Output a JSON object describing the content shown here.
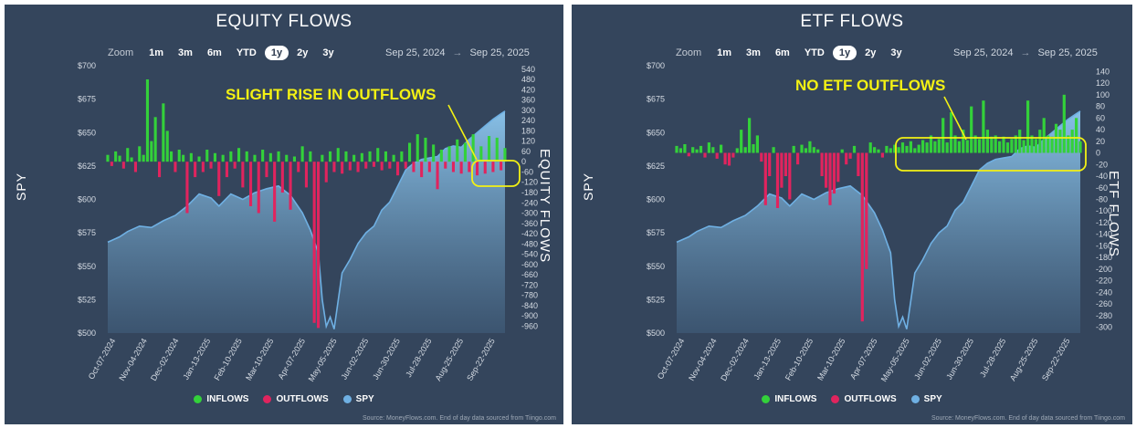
{
  "panels": [
    {
      "title": "EQUITY FLOWS",
      "zoom": {
        "label": "Zoom",
        "buttons": [
          "1m",
          "3m",
          "6m",
          "YTD",
          "1y",
          "2y",
          "3y"
        ],
        "selected": "1y"
      },
      "range": {
        "from": "Sep 25, 2024",
        "sep": "→",
        "to": "Sep 25, 2025"
      },
      "annotation": "SLIGHT RISE IN OUTFLOWS",
      "legend": {
        "inflows": "INFLOWS",
        "outflows": "OUTFLOWS",
        "spy": "SPY"
      },
      "source": "Source: MoneyFlows.com. End of day data sourced from Tiingo.com"
    },
    {
      "title": "ETF FLOWS",
      "zoom": {
        "label": "Zoom",
        "buttons": [
          "1m",
          "3m",
          "6m",
          "YTD",
          "1y",
          "2y",
          "3y"
        ],
        "selected": "1y"
      },
      "range": {
        "from": "Sep 25, 2024",
        "sep": "→",
        "to": "Sep 25, 2025"
      },
      "annotation": "NO ETF OUTFLOWS",
      "legend": {
        "inflows": "INFLOWS",
        "outflows": "OUTFLOWS",
        "spy": "SPY"
      },
      "source": "Source: MoneyFlows.com. End of day data sourced from Tiingo.com"
    }
  ],
  "colors": {
    "panel_bg": "#34455c",
    "inflows": "#33d13a",
    "outflows": "#e0245e",
    "spy": "#6fb0e3",
    "annotation": "#f3f114"
  },
  "chart_data": [
    {
      "type": "bar",
      "title": "EQUITY FLOWS",
      "ylabel": "SPY",
      "ylabel_right": "EQUITY FLOWS",
      "left_axis": {
        "ylim": [
          500,
          700
        ],
        "ticks": [
          "$700",
          "$675",
          "$650",
          "$625",
          "$600",
          "$575",
          "$550",
          "$525",
          "$500"
        ]
      },
      "right_axis": {
        "ylim": [
          -1000,
          560
        ],
        "ticks": [
          "540",
          "480",
          "420",
          "360",
          "300",
          "240",
          "180",
          "120",
          "60",
          "0",
          "-60",
          "-120",
          "-180",
          "-240",
          "-300",
          "-360",
          "-420",
          "-480",
          "-540",
          "-600",
          "-660",
          "-720",
          "-780",
          "-840",
          "-900",
          "-960"
        ]
      },
      "x_tick_labels": [
        "Oct-07-2024",
        "Nov-04-2024",
        "Dec-02-2024",
        "Jan-13-2025",
        "Feb-10-2025",
        "Mar-10-2025",
        "Apr-07-2025",
        "May-05-2025",
        "Jun-02-2025",
        "Jun-30-2025",
        "Jul-28-2025",
        "Aug-25-2025",
        "Sep-22-2025"
      ],
      "spy": [
        [
          0,
          568
        ],
        [
          0.03,
          572
        ],
        [
          0.05,
          576
        ],
        [
          0.08,
          580
        ],
        [
          0.11,
          579
        ],
        [
          0.14,
          584
        ],
        [
          0.17,
          588
        ],
        [
          0.2,
          595
        ],
        [
          0.23,
          604
        ],
        [
          0.26,
          601
        ],
        [
          0.28,
          595
        ],
        [
          0.31,
          604
        ],
        [
          0.34,
          600
        ],
        [
          0.37,
          605
        ],
        [
          0.4,
          608
        ],
        [
          0.43,
          610
        ],
        [
          0.46,
          603
        ],
        [
          0.49,
          590
        ],
        [
          0.51,
          577
        ],
        [
          0.53,
          560
        ],
        [
          0.54,
          525
        ],
        [
          0.55,
          505
        ],
        [
          0.56,
          512
        ],
        [
          0.57,
          503
        ],
        [
          0.59,
          545
        ],
        [
          0.61,
          555
        ],
        [
          0.63,
          567
        ],
        [
          0.65,
          575
        ],
        [
          0.67,
          580
        ],
        [
          0.69,
          592
        ],
        [
          0.71,
          598
        ],
        [
          0.73,
          610
        ],
        [
          0.75,
          622
        ],
        [
          0.77,
          627
        ],
        [
          0.79,
          630
        ],
        [
          0.81,
          631
        ],
        [
          0.83,
          632
        ],
        [
          0.85,
          638
        ],
        [
          0.87,
          640
        ],
        [
          0.89,
          639
        ],
        [
          0.91,
          645
        ],
        [
          0.93,
          650
        ],
        [
          0.95,
          655
        ],
        [
          0.97,
          660
        ],
        [
          0.99,
          664
        ],
        [
          1.0,
          666
        ]
      ],
      "flows": [
        [
          0,
          40
        ],
        [
          0.01,
          -25
        ],
        [
          0.02,
          60
        ],
        [
          0.03,
          35
        ],
        [
          0.04,
          -40
        ],
        [
          0.05,
          80
        ],
        [
          0.06,
          25
        ],
        [
          0.07,
          -60
        ],
        [
          0.08,
          90
        ],
        [
          0.09,
          40
        ],
        [
          0.1,
          480
        ],
        [
          0.11,
          120
        ],
        [
          0.12,
          260
        ],
        [
          0.13,
          -90
        ],
        [
          0.14,
          340
        ],
        [
          0.15,
          180
        ],
        [
          0.16,
          60
        ],
        [
          0.17,
          -60
        ],
        [
          0.18,
          70
        ],
        [
          0.19,
          40
        ],
        [
          0.2,
          -300
        ],
        [
          0.21,
          50
        ],
        [
          0.22,
          -90
        ],
        [
          0.23,
          30
        ],
        [
          0.24,
          -60
        ],
        [
          0.25,
          70
        ],
        [
          0.26,
          -40
        ],
        [
          0.27,
          50
        ],
        [
          0.28,
          -200
        ],
        [
          0.29,
          40
        ],
        [
          0.3,
          -90
        ],
        [
          0.31,
          60
        ],
        [
          0.32,
          -40
        ],
        [
          0.33,
          80
        ],
        [
          0.34,
          -150
        ],
        [
          0.35,
          60
        ],
        [
          0.36,
          -260
        ],
        [
          0.37,
          40
        ],
        [
          0.38,
          -300
        ],
        [
          0.39,
          70
        ],
        [
          0.4,
          -90
        ],
        [
          0.41,
          50
        ],
        [
          0.42,
          -350
        ],
        [
          0.43,
          60
        ],
        [
          0.44,
          -180
        ],
        [
          0.45,
          40
        ],
        [
          0.46,
          -280
        ],
        [
          0.47,
          30
        ],
        [
          0.48,
          -60
        ],
        [
          0.49,
          90
        ],
        [
          0.5,
          -150
        ],
        [
          0.51,
          60
        ],
        [
          0.52,
          -940
        ],
        [
          0.53,
          -970
        ],
        [
          0.54,
          40
        ],
        [
          0.55,
          -120
        ],
        [
          0.56,
          60
        ],
        [
          0.57,
          -60
        ],
        [
          0.58,
          80
        ],
        [
          0.59,
          -70
        ],
        [
          0.6,
          60
        ],
        [
          0.61,
          -50
        ],
        [
          0.62,
          40
        ],
        [
          0.63,
          -60
        ],
        [
          0.64,
          50
        ],
        [
          0.65,
          -40
        ],
        [
          0.66,
          60
        ],
        [
          0.67,
          -30
        ],
        [
          0.68,
          80
        ],
        [
          0.69,
          -50
        ],
        [
          0.7,
          60
        ],
        [
          0.71,
          -40
        ],
        [
          0.72,
          40
        ],
        [
          0.73,
          -80
        ],
        [
          0.74,
          60
        ],
        [
          0.75,
          -40
        ],
        [
          0.76,
          110
        ],
        [
          0.77,
          -60
        ],
        [
          0.78,
          160
        ],
        [
          0.79,
          -90
        ],
        [
          0.8,
          140
        ],
        [
          0.81,
          -60
        ],
        [
          0.82,
          100
        ],
        [
          0.83,
          -160
        ],
        [
          0.84,
          70
        ],
        [
          0.85,
          -40
        ],
        [
          0.86,
          90
        ],
        [
          0.87,
          -60
        ],
        [
          0.88,
          130
        ],
        [
          0.89,
          -70
        ],
        [
          0.9,
          110
        ],
        [
          0.91,
          -60
        ],
        [
          0.92,
          160
        ],
        [
          0.93,
          -80
        ],
        [
          0.94,
          90
        ],
        [
          0.95,
          -70
        ],
        [
          0.96,
          150
        ],
        [
          0.97,
          -60
        ],
        [
          0.98,
          140
        ],
        [
          0.99,
          -50
        ],
        [
          1.0,
          80
        ]
      ]
    },
    {
      "type": "bar",
      "title": "ETF FLOWS",
      "ylabel": "SPY",
      "ylabel_right": "ETF FLOWS",
      "left_axis": {
        "ylim": [
          500,
          700
        ],
        "ticks": [
          "$700",
          "$675",
          "$650",
          "$625",
          "$600",
          "$575",
          "$550",
          "$525",
          "$500"
        ]
      },
      "right_axis": {
        "ylim": [
          -310,
          150
        ],
        "ticks": [
          "140",
          "120",
          "100",
          "80",
          "60",
          "40",
          "20",
          "0",
          "-20",
          "-40",
          "-60",
          "-80",
          "-100",
          "-120",
          "-140",
          "-160",
          "-180",
          "-200",
          "-220",
          "-240",
          "-260",
          "-280",
          "-300"
        ]
      },
      "x_tick_labels": [
        "Oct-07-2024",
        "Nov-04-2024",
        "Dec-02-2024",
        "Jan-13-2025",
        "Feb-10-2025",
        "Mar-10-2025",
        "Apr-07-2025",
        "May-05-2025",
        "Jun-02-2025",
        "Jun-30-2025",
        "Jul-28-2025",
        "Aug-25-2025",
        "Sep-22-2025"
      ],
      "spy": [
        [
          0,
          568
        ],
        [
          0.03,
          572
        ],
        [
          0.05,
          576
        ],
        [
          0.08,
          580
        ],
        [
          0.11,
          579
        ],
        [
          0.14,
          584
        ],
        [
          0.17,
          588
        ],
        [
          0.2,
          595
        ],
        [
          0.23,
          604
        ],
        [
          0.26,
          601
        ],
        [
          0.28,
          595
        ],
        [
          0.31,
          604
        ],
        [
          0.34,
          600
        ],
        [
          0.37,
          605
        ],
        [
          0.4,
          608
        ],
        [
          0.43,
          610
        ],
        [
          0.46,
          603
        ],
        [
          0.49,
          590
        ],
        [
          0.51,
          577
        ],
        [
          0.53,
          560
        ],
        [
          0.54,
          525
        ],
        [
          0.55,
          505
        ],
        [
          0.56,
          512
        ],
        [
          0.57,
          503
        ],
        [
          0.59,
          545
        ],
        [
          0.61,
          555
        ],
        [
          0.63,
          567
        ],
        [
          0.65,
          575
        ],
        [
          0.67,
          580
        ],
        [
          0.69,
          592
        ],
        [
          0.71,
          598
        ],
        [
          0.73,
          610
        ],
        [
          0.75,
          622
        ],
        [
          0.77,
          627
        ],
        [
          0.79,
          630
        ],
        [
          0.81,
          631
        ],
        [
          0.83,
          632
        ],
        [
          0.85,
          638
        ],
        [
          0.87,
          640
        ],
        [
          0.89,
          639
        ],
        [
          0.91,
          645
        ],
        [
          0.93,
          650
        ],
        [
          0.95,
          655
        ],
        [
          0.97,
          660
        ],
        [
          0.99,
          664
        ],
        [
          1.0,
          666
        ]
      ],
      "flows": [
        [
          0,
          12
        ],
        [
          0.01,
          8
        ],
        [
          0.02,
          15
        ],
        [
          0.03,
          -6
        ],
        [
          0.04,
          10
        ],
        [
          0.05,
          6
        ],
        [
          0.06,
          12
        ],
        [
          0.07,
          -8
        ],
        [
          0.08,
          18
        ],
        [
          0.09,
          10
        ],
        [
          0.1,
          -10
        ],
        [
          0.11,
          14
        ],
        [
          0.12,
          -20
        ],
        [
          0.13,
          -22
        ],
        [
          0.14,
          -8
        ],
        [
          0.15,
          8
        ],
        [
          0.16,
          40
        ],
        [
          0.17,
          10
        ],
        [
          0.18,
          60
        ],
        [
          0.19,
          15
        ],
        [
          0.2,
          30
        ],
        [
          0.21,
          -15
        ],
        [
          0.22,
          -90
        ],
        [
          0.23,
          -40
        ],
        [
          0.24,
          10
        ],
        [
          0.25,
          -95
        ],
        [
          0.26,
          -60
        ],
        [
          0.27,
          -40
        ],
        [
          0.28,
          -80
        ],
        [
          0.29,
          12
        ],
        [
          0.3,
          -20
        ],
        [
          0.31,
          14
        ],
        [
          0.32,
          8
        ],
        [
          0.33,
          20
        ],
        [
          0.34,
          10
        ],
        [
          0.35,
          6
        ],
        [
          0.36,
          -40
        ],
        [
          0.37,
          -60
        ],
        [
          0.38,
          -90
        ],
        [
          0.39,
          -70
        ],
        [
          0.4,
          -50
        ],
        [
          0.41,
          6
        ],
        [
          0.42,
          -20
        ],
        [
          0.43,
          -10
        ],
        [
          0.44,
          12
        ],
        [
          0.45,
          -40
        ],
        [
          0.46,
          -290
        ],
        [
          0.47,
          -200
        ],
        [
          0.48,
          18
        ],
        [
          0.49,
          10
        ],
        [
          0.5,
          6
        ],
        [
          0.51,
          -8
        ],
        [
          0.52,
          12
        ],
        [
          0.53,
          8
        ],
        [
          0.54,
          14
        ],
        [
          0.55,
          10
        ],
        [
          0.56,
          18
        ],
        [
          0.57,
          12
        ],
        [
          0.58,
          20
        ],
        [
          0.59,
          8
        ],
        [
          0.6,
          14
        ],
        [
          0.61,
          22
        ],
        [
          0.62,
          18
        ],
        [
          0.63,
          30
        ],
        [
          0.64,
          20
        ],
        [
          0.65,
          24
        ],
        [
          0.66,
          60
        ],
        [
          0.67,
          18
        ],
        [
          0.68,
          70
        ],
        [
          0.69,
          30
        ],
        [
          0.7,
          20
        ],
        [
          0.71,
          40
        ],
        [
          0.72,
          22
        ],
        [
          0.73,
          80
        ],
        [
          0.74,
          30
        ],
        [
          0.75,
          24
        ],
        [
          0.76,
          90
        ],
        [
          0.77,
          40
        ],
        [
          0.78,
          28
        ],
        [
          0.79,
          30
        ],
        [
          0.8,
          20
        ],
        [
          0.81,
          28
        ],
        [
          0.82,
          18
        ],
        [
          0.83,
          24
        ],
        [
          0.84,
          30
        ],
        [
          0.85,
          40
        ],
        [
          0.86,
          22
        ],
        [
          0.87,
          90
        ],
        [
          0.88,
          30
        ],
        [
          0.89,
          24
        ],
        [
          0.9,
          40
        ],
        [
          0.91,
          60
        ],
        [
          0.92,
          30
        ],
        [
          0.93,
          28
        ],
        [
          0.94,
          50
        ],
        [
          0.95,
          40
        ],
        [
          0.96,
          100
        ],
        [
          0.97,
          30
        ],
        [
          0.98,
          40
        ],
        [
          0.99,
          60
        ],
        [
          1.0,
          20
        ]
      ]
    }
  ]
}
